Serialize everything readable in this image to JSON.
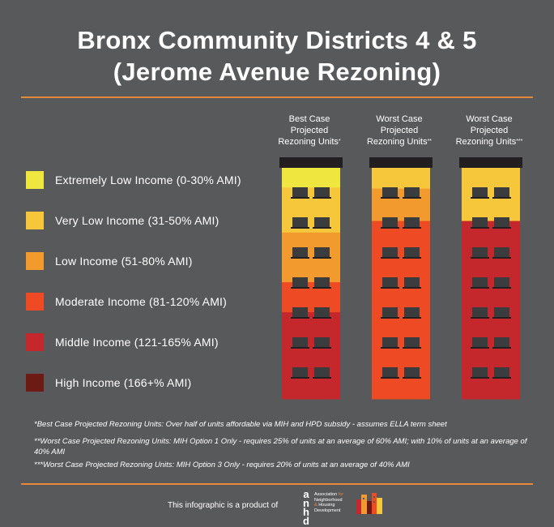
{
  "title": {
    "line1": "Bronx Community Districts 4 & 5",
    "line2": "(Jerome Avenue Rezoning)"
  },
  "colors": {
    "background": "#58595b",
    "accent": "#e5893b",
    "roof": "#231f20",
    "window": "#3b3c3e"
  },
  "chart_data": {
    "type": "bar",
    "orientation": "vertical-stacked",
    "value_unit": "share of units (0-1)",
    "grid": false,
    "legend_position": "left",
    "income_bands": [
      {
        "label": "Extremely Low Income (0-30% AMI)",
        "color": "#f0e640"
      },
      {
        "label": "Very Low Income (31-50% AMI)",
        "color": "#f6c73a"
      },
      {
        "label": "Low Income (51-80% AMI)",
        "color": "#f39a2e"
      },
      {
        "label": "Moderate Income (81-120% AMI)",
        "color": "#ee4a23"
      },
      {
        "label": "Middle Income (121-165% AMI)",
        "color": "#c4282c"
      },
      {
        "label": "High Income (166+% AMI)",
        "color": "#6b1a14"
      }
    ],
    "categories": [
      {
        "lines": [
          "Best Case",
          "Projected",
          "Rezoning Units"
        ],
        "mark": "*"
      },
      {
        "lines": [
          "Worst Case",
          "Projected",
          "Rezoning Units"
        ],
        "mark": "**"
      },
      {
        "lines": [
          "Worst Case",
          "Projected",
          "Rezoning Units"
        ],
        "mark": "***"
      }
    ],
    "series": [
      {
        "band": 0,
        "values": [
          0.085,
          0.0,
          0.0
        ]
      },
      {
        "band": 1,
        "values": [
          0.195,
          0.09,
          0.23
        ]
      },
      {
        "band": 2,
        "values": [
          0.215,
          0.14,
          0.0
        ]
      },
      {
        "band": 3,
        "values": [
          0.13,
          0.77,
          0.0
        ]
      },
      {
        "band": 4,
        "values": [
          0.375,
          0.0,
          0.77
        ]
      },
      {
        "band": 5,
        "values": [
          0.0,
          0.0,
          0.0
        ]
      }
    ]
  },
  "notes": [
    "*Best Case Projected Rezoning Units: Over half of units affordable via MIH and HPD subsidy - assumes ELLA term sheet",
    "**Worst Case Projected Rezoning Units: MIH Option 1 Only - requires 25% of units at an average of 60% AMI; with 10% of units at an average of 40% AMI",
    "***Worst Case Projected Rezoning Units: MIH Option 3 Only - requires 20% of units at an average of 40% AMI"
  ],
  "footer": {
    "text": "This infographic is a product of",
    "logo_letters": [
      "a",
      "n",
      "h",
      "d"
    ],
    "logo_name": [
      "Association",
      "for",
      "Neighborhood",
      "&",
      "Housing",
      "Development"
    ]
  }
}
